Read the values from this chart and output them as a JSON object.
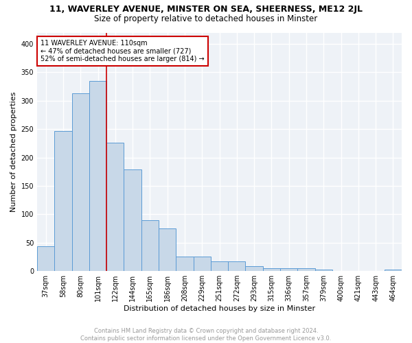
{
  "title": "11, WAVERLEY AVENUE, MINSTER ON SEA, SHEERNESS, ME12 2JL",
  "subtitle": "Size of property relative to detached houses in Minster",
  "xlabel": "Distribution of detached houses by size in Minster",
  "ylabel": "Number of detached properties",
  "categories": [
    "37sqm",
    "58sqm",
    "80sqm",
    "101sqm",
    "122sqm",
    "144sqm",
    "165sqm",
    "186sqm",
    "208sqm",
    "229sqm",
    "251sqm",
    "272sqm",
    "293sqm",
    "315sqm",
    "336sqm",
    "357sqm",
    "379sqm",
    "400sqm",
    "421sqm",
    "443sqm",
    "464sqm"
  ],
  "values": [
    44,
    246,
    313,
    335,
    226,
    179,
    90,
    75,
    26,
    26,
    17,
    17,
    9,
    5,
    5,
    5,
    3,
    0,
    0,
    0,
    3
  ],
  "bar_color": "#c8d8e8",
  "bar_edge_color": "#5b9bd5",
  "vline_x": 3.5,
  "annotation_line1": "11 WAVERLEY AVENUE: 110sqm",
  "annotation_line2": "← 47% of detached houses are smaller (727)",
  "annotation_line3": "52% of semi-detached houses are larger (814) →",
  "annotation_box_color": "#cc0000",
  "vline_color": "#cc0000",
  "footer_line1": "Contains HM Land Registry data © Crown copyright and database right 2024.",
  "footer_line2": "Contains public sector information licensed under the Open Government Licence v3.0.",
  "ylim": [
    0,
    420
  ],
  "bg_color": "#eef2f7",
  "grid_color": "#ffffff",
  "title_fontsize": 9,
  "subtitle_fontsize": 8.5,
  "tick_fontsize": 7,
  "ylabel_fontsize": 8,
  "xlabel_fontsize": 8,
  "annotation_fontsize": 7,
  "footer_fontsize": 6
}
